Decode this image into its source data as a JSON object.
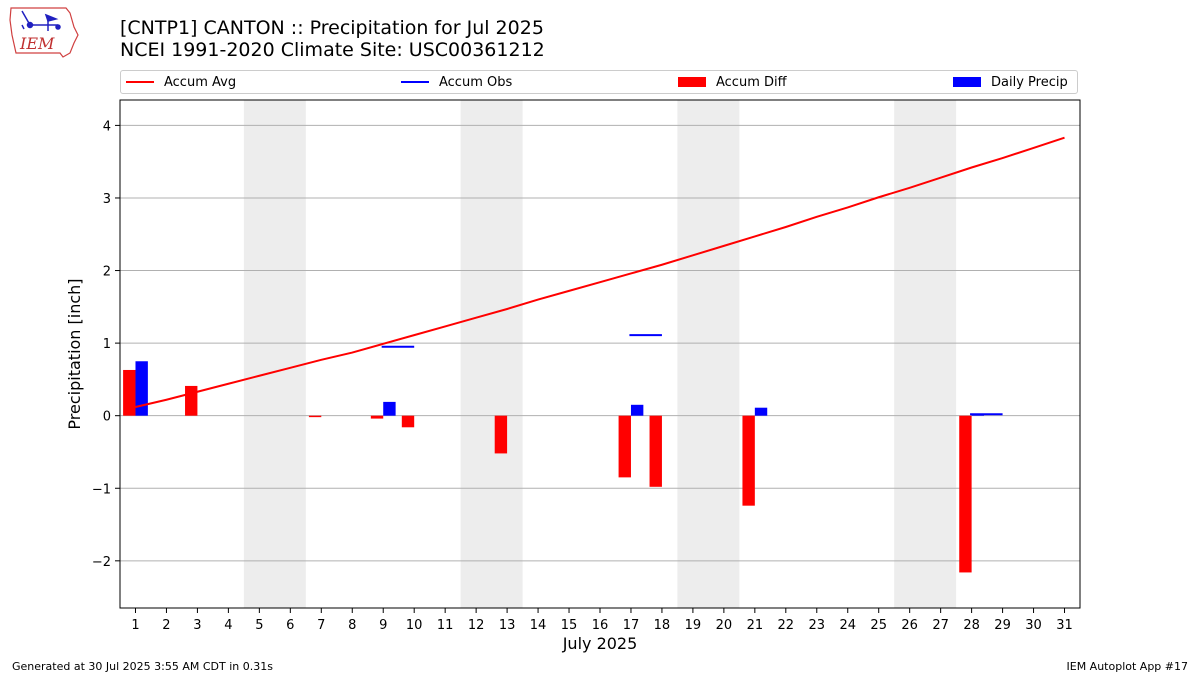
{
  "logo": {
    "text": "IEM",
    "colors": {
      "outline": "#d04040",
      "text": "#c03030",
      "icon": "#2020c0"
    }
  },
  "header": {
    "title_line1": "[CNTP1] CANTON :: Precipitation for Jul 2025",
    "title_line2": "NCEI 1991-2020 Climate Site: USC00361212"
  },
  "legend": {
    "items": [
      {
        "label": "Accum Avg",
        "kind": "line",
        "color": "#ff0000"
      },
      {
        "label": "Accum Obs",
        "kind": "line",
        "color": "#0000ff"
      },
      {
        "label": "Accum Diff",
        "kind": "bar",
        "color": "#ff0000"
      },
      {
        "label": "Daily Precip",
        "kind": "bar",
        "color": "#0000ff"
      }
    ]
  },
  "footer": {
    "generated": "Generated at 30 Jul 2025 3:55 AM CDT in 0.31s",
    "app": "IEM Autoplot App #17"
  },
  "chart_data": {
    "type": "bar",
    "title": "[CNTP1] CANTON :: Precipitation for Jul 2025",
    "xlabel": "July 2025",
    "ylabel": "Precipitation [inch]",
    "xlim": [
      0.5,
      31.5
    ],
    "ylim": [
      -2.65,
      4.35
    ],
    "yticks": [
      -2,
      -1,
      0,
      1,
      2,
      3,
      4
    ],
    "ytick_labels": [
      "−2",
      "−1",
      "0",
      "1",
      "2",
      "3",
      "4"
    ],
    "grid": true,
    "weekend_shading": [
      [
        4.5,
        6.5
      ],
      [
        11.5,
        13.5
      ],
      [
        18.5,
        20.5
      ],
      [
        25.5,
        27.5
      ]
    ],
    "days": [
      1,
      2,
      3,
      4,
      5,
      6,
      7,
      8,
      9,
      10,
      11,
      12,
      13,
      14,
      15,
      16,
      17,
      18,
      19,
      20,
      21,
      22,
      23,
      24,
      25,
      26,
      27,
      28,
      29,
      30,
      31
    ],
    "series": [
      {
        "name": "Accum Avg",
        "kind": "line",
        "color": "#ff0000",
        "values": [
          0.12,
          0.22,
          0.33,
          0.44,
          0.55,
          0.66,
          0.77,
          0.87,
          0.99,
          1.11,
          1.23,
          1.35,
          1.47,
          1.6,
          1.72,
          1.84,
          1.96,
          2.08,
          2.21,
          2.34,
          2.47,
          2.6,
          2.74,
          2.87,
          3.01,
          3.14,
          3.28,
          3.42,
          3.55,
          3.69,
          3.83
        ]
      },
      {
        "name": "Accum Obs",
        "kind": "step",
        "color": "#0000ff",
        "segments": [
          {
            "x": 9,
            "value": 0.95
          },
          {
            "x": 17,
            "value": 1.11
          },
          {
            "x": 28,
            "value": 0.02
          }
        ]
      },
      {
        "name": "Accum Diff",
        "kind": "bar",
        "color": "#ff0000",
        "values": {
          "1": 0.63,
          "3": 0.41,
          "7": -0.02,
          "9": -0.04,
          "10": -0.16,
          "13": -0.52,
          "17": -0.85,
          "18": -0.98,
          "21": -1.24,
          "28": -2.16
        }
      },
      {
        "name": "Daily Precip",
        "kind": "bar",
        "color": "#0000ff",
        "values": {
          "1": 0.75,
          "9": 0.19,
          "17": 0.15,
          "21": 0.11,
          "28": 0.02
        }
      }
    ]
  }
}
